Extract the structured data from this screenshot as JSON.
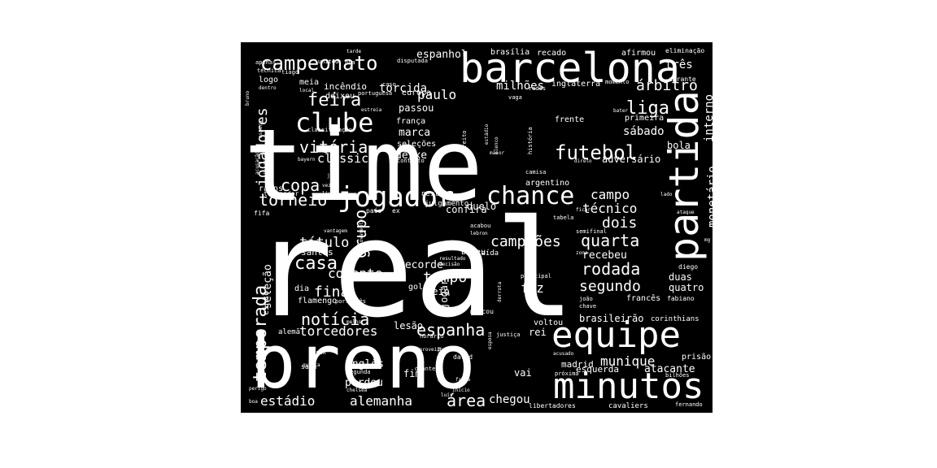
{
  "colors": {
    "background": "#000000",
    "text": "#ffffff",
    "page": "#ffffff"
  },
  "words": [
    {
      "id": "real",
      "text": "real"
    },
    {
      "id": "time",
      "text": "time"
    },
    {
      "id": "breno",
      "text": "breno"
    },
    {
      "id": "barcelona",
      "text": "barcelona"
    },
    {
      "id": "partida",
      "text": "partida"
    },
    {
      "id": "equipe",
      "text": "equipe"
    },
    {
      "id": "minutos",
      "text": "minutos"
    },
    {
      "id": "jogador",
      "text": "jogador"
    },
    {
      "id": "chance",
      "text": "chance"
    },
    {
      "id": "clube",
      "text": "clube"
    },
    {
      "id": "campeonato",
      "text": "campeonato"
    },
    {
      "id": "futebol",
      "text": "futebol"
    },
    {
      "id": "liga",
      "text": "liga"
    },
    {
      "id": "feira",
      "text": "feira"
    },
    {
      "id": "vitoria",
      "text": "vitória"
    },
    {
      "id": "noticia",
      "text": "notícia"
    },
    {
      "id": "espanha",
      "text": "espanha"
    },
    {
      "id": "casa",
      "text": "casa"
    },
    {
      "id": "copa",
      "text": "copa"
    },
    {
      "id": "torneio",
      "text": "torneio"
    },
    {
      "id": "final",
      "text": "final"
    },
    {
      "id": "temporada",
      "text": "temporada"
    },
    {
      "id": "jogadores",
      "text": "jogadores"
    },
    {
      "id": "grupo",
      "text": "grupo"
    },
    {
      "id": "titulo",
      "text": "título"
    },
    {
      "id": "tempo",
      "text": "tempo"
    },
    {
      "id": "quarta",
      "text": "quarta"
    },
    {
      "id": "rodada",
      "text": "rodada"
    },
    {
      "id": "segundo",
      "text": "segundo"
    },
    {
      "id": "dois",
      "text": "dois"
    },
    {
      "id": "campeoes",
      "text": "campeões"
    },
    {
      "id": "torcedores",
      "text": "torcedores"
    },
    {
      "id": "alemanha",
      "text": "alemanha"
    },
    {
      "id": "estadio",
      "text": "estádio"
    },
    {
      "id": "area",
      "text": "área"
    },
    {
      "id": "munique",
      "text": "munique"
    },
    {
      "id": "paulo",
      "text": "paulo"
    },
    {
      "id": "arbitro",
      "text": "árbitro"
    },
    {
      "id": "monetario",
      "text": "monetário"
    },
    {
      "id": "interno",
      "text": "interno"
    },
    {
      "id": "classico",
      "text": "clássico"
    },
    {
      "id": "comente",
      "text": "comente"
    },
    {
      "id": "campo",
      "text": "campo"
    },
    {
      "id": "tecnico",
      "text": "técnico"
    },
    {
      "id": "sabado",
      "text": "sábado"
    },
    {
      "id": "fez",
      "text": "fez"
    },
    {
      "id": "torcida",
      "text": "torcida"
    },
    {
      "id": "milhoes",
      "text": "milhões"
    },
    {
      "id": "espanhol",
      "text": "espanhol"
    },
    {
      "id": "tres",
      "text": "três"
    },
    {
      "id": "bola",
      "text": "bola"
    },
    {
      "id": "adversario",
      "text": "adversário"
    },
    {
      "id": "selecao",
      "text": "seleção"
    },
    {
      "id": "ingles",
      "text": "inglês"
    },
    {
      "id": "chegou",
      "text": "chegou"
    },
    {
      "id": "perdeu",
      "text": "perdeu"
    },
    {
      "id": "atacante",
      "text": "atacante"
    },
    {
      "id": "brasileirao",
      "text": "brasileirão"
    },
    {
      "id": "recebeu",
      "text": "recebeu"
    },
    {
      "id": "duas",
      "text": "duas"
    },
    {
      "id": "quatro",
      "text": "quatro"
    },
    {
      "id": "marca",
      "text": "marca"
    },
    {
      "id": "deixe",
      "text": "deixe"
    },
    {
      "id": "passou",
      "text": "passou"
    },
    {
      "id": "recorde",
      "text": "recorde"
    },
    {
      "id": "confira",
      "text": "confira"
    },
    {
      "id": "duelo",
      "text": "duelo"
    },
    {
      "id": "jogar",
      "text": "jogar"
    },
    {
      "id": "meio",
      "text": "meio"
    },
    {
      "id": "lesao",
      "text": "lesão"
    },
    {
      "id": "rei",
      "text": "rei"
    },
    {
      "id": "fim",
      "text": "fim"
    },
    {
      "id": "vai",
      "text": "vai"
    },
    {
      "id": "madrid",
      "text": "madrid"
    },
    {
      "id": "esquerda",
      "text": "esquerda"
    },
    {
      "id": "inglaterra",
      "text": "inglaterra"
    },
    {
      "id": "frente",
      "text": "frente"
    },
    {
      "id": "primeira",
      "text": "primeira"
    },
    {
      "id": "argentino",
      "text": "argentino"
    },
    {
      "id": "ramos",
      "text": "ramos"
    },
    {
      "id": "brasilia",
      "text": "brasília"
    },
    {
      "id": "recado",
      "text": "recado"
    },
    {
      "id": "afirmou",
      "text": "afirmou"
    },
    {
      "id": "eliminacao",
      "text": "eliminação"
    },
    {
      "id": "durante",
      "text": "durante"
    },
    {
      "id": "europa",
      "text": "europa"
    },
    {
      "id": "franca",
      "text": "frança"
    },
    {
      "id": "selecoes",
      "text": "seleções"
    },
    {
      "id": "incendio",
      "text": "incêndio"
    },
    {
      "id": "deixou",
      "text": "deixou"
    },
    {
      "id": "meia",
      "text": "meia"
    },
    {
      "id": "logo",
      "text": "logo"
    },
    {
      "id": "santos",
      "text": "santos"
    },
    {
      "id": "flamengo",
      "text": "flamengo"
    },
    {
      "id": "dia",
      "text": "dia"
    },
    {
      "id": "cinco",
      "text": "cinco"
    },
    {
      "id": "gol",
      "text": "gol"
    },
    {
      "id": "voltou",
      "text": "voltou"
    },
    {
      "id": "frances",
      "text": "francês"
    },
    {
      "id": "corinthians",
      "text": "corinthians"
    },
    {
      "id": "prisao",
      "text": "prisão"
    },
    {
      "id": "fabiano",
      "text": "fabiano"
    },
    {
      "id": "diego",
      "text": "diego"
    },
    {
      "id": "bateu",
      "text": "bateu"
    },
    {
      "id": "saida",
      "text": "saída"
    },
    {
      "id": "julgamento",
      "text": "julgamento"
    },
    {
      "id": "neste",
      "text": "neste"
    },
    {
      "id": "pais",
      "text": "país"
    },
    {
      "id": "ex",
      "text": "ex"
    },
    {
      "id": "fifa",
      "text": "fifa"
    },
    {
      "id": "treinador",
      "text": "treinador"
    },
    {
      "id": "libertadores",
      "text": "libertadores"
    },
    {
      "id": "cavaliers",
      "text": "cavaliers"
    },
    {
      "id": "fernando",
      "text": "fernando"
    },
    {
      "id": "alema",
      "text": "alemã"
    },
    {
      "id": "historia",
      "text": "história"
    },
    {
      "id": "direito",
      "text": "direito"
    },
    {
      "id": "camisa",
      "text": "camisa"
    },
    {
      "id": "vaga",
      "text": "vaga"
    },
    {
      "id": "marcou",
      "text": "marcou"
    },
    {
      "id": "saiu",
      "text": "saiu"
    },
    {
      "id": "segunda",
      "text": "segunda"
    },
    {
      "id": "diante",
      "text": "diante"
    },
    {
      "id": "david",
      "text": "david"
    },
    {
      "id": "bilhoes",
      "text": "bilhões"
    },
    {
      "id": "proxima",
      "text": "próxima"
    },
    {
      "id": "justica",
      "text": "justiça"
    },
    {
      "id": "horario",
      "text": "horário"
    },
    {
      "id": "chave",
      "text": "chave"
    },
    {
      "id": "joao",
      "text": "joão"
    },
    {
      "id": "tabela",
      "text": "tabela"
    },
    {
      "id": "principal",
      "text": "principal"
    },
    {
      "id": "acabou",
      "text": "acabou"
    },
    {
      "id": "momento",
      "text": "momento"
    },
    {
      "id": "portuguesa",
      "text": "portuguesa"
    },
    {
      "id": "redes",
      "text": "redes"
    },
    {
      "id": "caso",
      "text": "caso"
    },
    {
      "id": "tiago",
      "text": "tiago"
    },
    {
      "id": "apenas",
      "text": "apenas"
    },
    {
      "id": "tecnica",
      "text": "técnica"
    },
    {
      "id": "united",
      "text": "united"
    },
    {
      "id": "nba",
      "text": "nba"
    },
    {
      "id": "tarde",
      "text": "tarde"
    },
    {
      "id": "disputada",
      "text": "disputada"
    },
    {
      "id": "local",
      "text": "local"
    },
    {
      "id": "estreia",
      "text": "estreia"
    },
    {
      "id": "classificacao",
      "text": "classificação"
    },
    {
      "id": "bayern",
      "text": "bayern"
    },
    {
      "id": "contrato",
      "text": "contrato"
    },
    {
      "id": "maior",
      "text": "maior"
    },
    {
      "id": "elenco",
      "text": "elenco"
    },
    {
      "id": "estadio2",
      "text": "estádio"
    },
    {
      "id": "direto",
      "text": "direto"
    },
    {
      "id": "bater",
      "text": "bater"
    },
    {
      "id": "joga",
      "text": "joga"
    },
    {
      "id": "vezes",
      "text": "vezes"
    },
    {
      "id": "livre",
      "text": "livre"
    },
    {
      "id": "inscricao",
      "text": "inscrição"
    },
    {
      "id": "bruno",
      "text": "bruno"
    },
    {
      "id": "acusacao",
      "text": "acusação"
    },
    {
      "id": "espera",
      "text": "espera"
    },
    {
      "id": "lado",
      "text": "lado"
    },
    {
      "id": "ataque",
      "text": "ataque"
    },
    {
      "id": "ficar",
      "text": "ficar"
    },
    {
      "id": "semifinal",
      "text": "semifinal"
    },
    {
      "id": "zona",
      "text": "zona"
    },
    {
      "id": "lebron",
      "text": "lebron"
    },
    {
      "id": "decisao",
      "text": "decisão"
    },
    {
      "id": "resultado",
      "text": "resultado"
    },
    {
      "id": "vantagem",
      "text": "vantagem"
    },
    {
      "id": "novamente",
      "text": "novamente"
    },
    {
      "id": "portugues",
      "text": "português"
    },
    {
      "id": "derrota",
      "text": "derrota"
    },
    {
      "id": "acusado",
      "text": "acusado"
    },
    {
      "id": "oportunidade",
      "text": "oportunidade"
    },
    {
      "id": "aproveitou",
      "text": "aproveitou"
    },
    {
      "id": "quinta",
      "text": "quinta"
    },
    {
      "id": "perigo",
      "text": "perigo"
    },
    {
      "id": "chelsea",
      "text": "chelsea"
    },
    {
      "id": "luis",
      "text": "luís"
    },
    {
      "id": "inicio",
      "text": "início"
    },
    {
      "id": "falta",
      "text": "falta"
    },
    {
      "id": "esposa",
      "text": "esposa"
    },
    {
      "id": "melhor",
      "text": "melhor"
    },
    {
      "id": "boa",
      "text": "boa"
    },
    {
      "id": "dentro",
      "text": "dentro"
    },
    {
      "id": "san",
      "text": "san"
    },
    {
      "id": "mg",
      "text": "mg"
    }
  ]
}
